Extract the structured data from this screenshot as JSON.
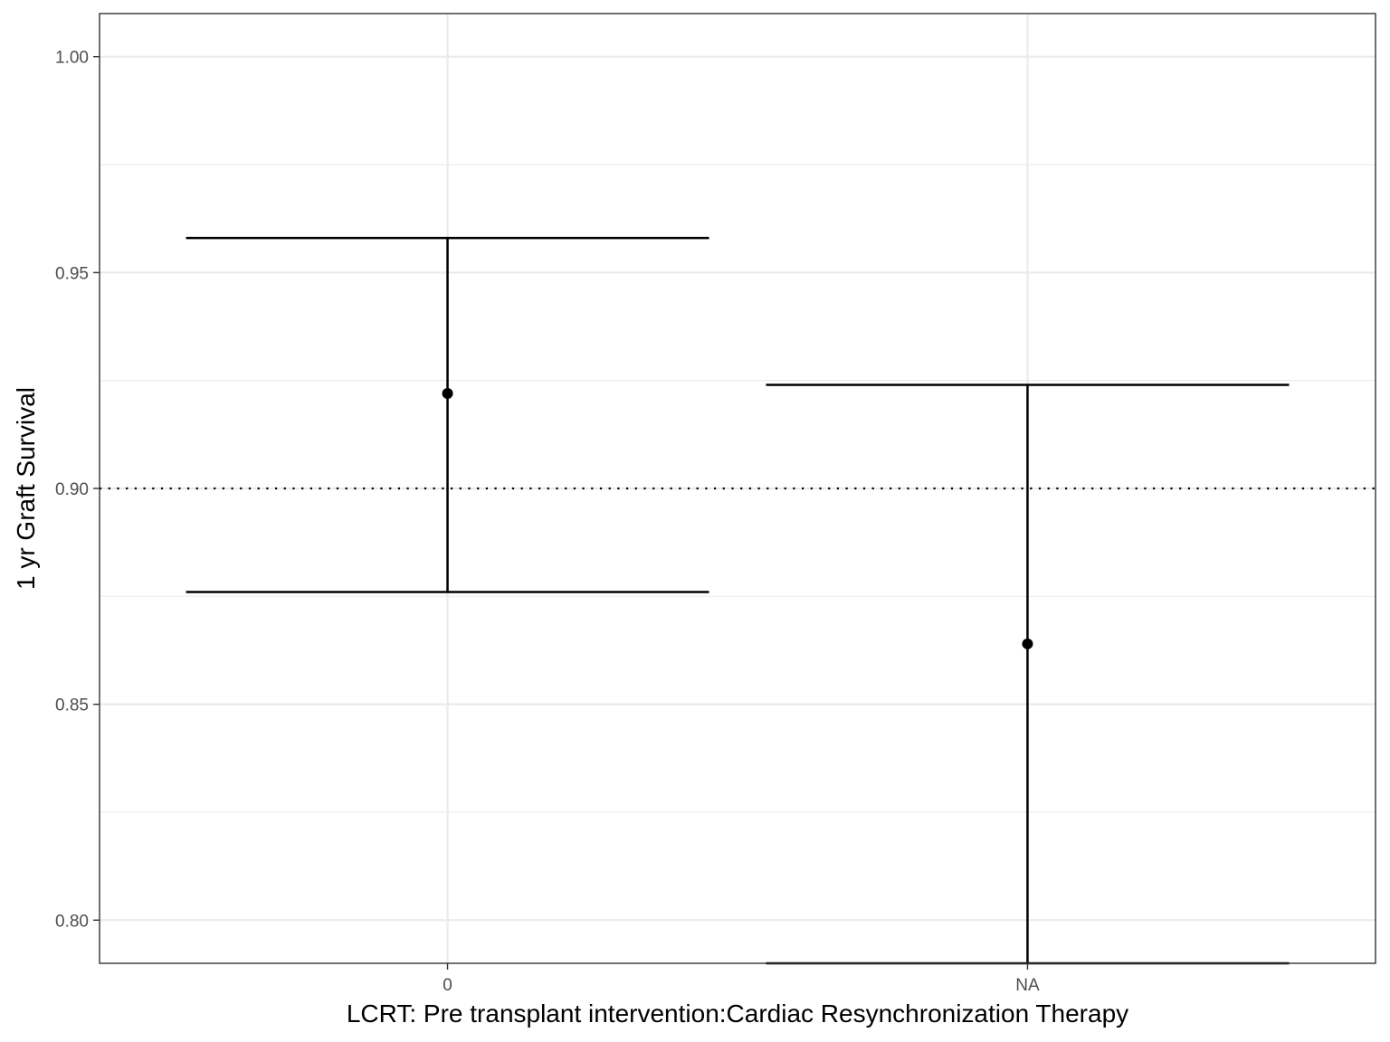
{
  "chart_data": {
    "type": "errorbar",
    "xlabel": "LCRT: Pre transplant intervention:Cardiac Resynchronization Therapy",
    "ylabel": "1 yr Graft Survival",
    "categories": [
      "0",
      "NA"
    ],
    "points": [
      {
        "category": "0",
        "estimate": 0.922,
        "lower": 0.876,
        "upper": 0.958
      },
      {
        "category": "NA",
        "estimate": 0.864,
        "lower": 0.79,
        "upper": 0.924
      }
    ],
    "reference_line": {
      "y": 0.9,
      "style": "dotted"
    },
    "ylim": [
      0.79,
      1.01
    ],
    "yticks": [
      "0.80",
      "0.85",
      "0.90",
      "0.95",
      "1.00"
    ],
    "y_minor_ticks": [
      0.825,
      0.875,
      0.925,
      0.975
    ],
    "grid": true
  }
}
